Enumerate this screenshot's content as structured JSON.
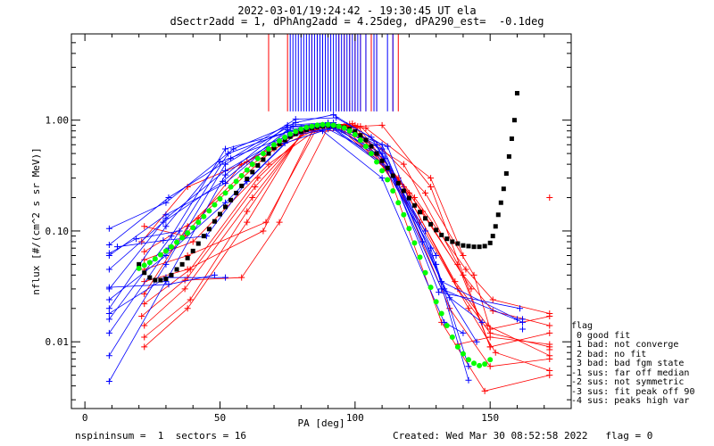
{
  "header": {
    "line1": "2022-03-01/19:24:42 - 19:30:45 UT ela",
    "line2": "dSectr2add = 1, dPhAng2add = 4.25deg, dPA290_est=  -0.1deg"
  },
  "footer": {
    "left": "nspininsum =  1  sectors = 16",
    "right": "Created: Wed Mar 30 08:52:58 2022   flag = 0"
  },
  "legend": {
    "title": "flag",
    "items": [
      " 0 good fit",
      " 1 bad: not converge",
      " 2 bad: no fit",
      " 3 bad: bad fgm state",
      "-1 sus: far off median",
      "-2 sus: not symmetric",
      "-3 sus: fit peak off 90",
      "-4 sus: peaks high var"
    ]
  },
  "colors": {
    "blue": "#0000ff",
    "red": "#ff0000",
    "green": "#00ff00",
    "black": "#000000"
  },
  "chart_data": {
    "type": "line",
    "xlabel": "PA [deg]",
    "ylabel": "nflux [#/(cm^2 s sr MeV)]",
    "xlim": [
      -5,
      180
    ],
    "ylim": [
      0.0025,
      6.0
    ],
    "yscale": "log",
    "xticks": [
      0,
      50,
      100,
      150
    ],
    "xtick_labels": [
      "0",
      "50",
      "100",
      "150"
    ],
    "yticks": [
      0.01,
      0.1,
      1.0
    ],
    "ytick_labels": [
      "0.01",
      "0.10",
      "1.00"
    ],
    "blue_curves": [
      [
        [
          9,
          0.0044
        ],
        [
          30,
          0.035
        ],
        [
          52,
          0.32
        ],
        [
          75,
          0.9
        ],
        [
          90,
          0.95
        ],
        [
          108,
          0.5
        ],
        [
          128,
          0.07
        ],
        [
          142,
          0.0045
        ]
      ],
      [
        [
          9,
          0.0075
        ],
        [
          30,
          0.05
        ],
        [
          52,
          0.4
        ],
        [
          75,
          0.86
        ],
        [
          90,
          0.92
        ],
        [
          110,
          0.55
        ],
        [
          130,
          0.05
        ],
        [
          142,
          0.006
        ]
      ],
      [
        [
          9,
          0.012
        ],
        [
          31,
          0.07
        ],
        [
          53,
          0.5
        ],
        [
          76,
          0.8
        ],
        [
          92,
          0.9
        ],
        [
          112,
          0.58
        ],
        [
          133,
          0.03
        ],
        [
          145,
          0.01
        ]
      ],
      [
        [
          9,
          0.016
        ],
        [
          32,
          0.09
        ],
        [
          52,
          0.55
        ],
        [
          75,
          0.78
        ],
        [
          91,
          0.88
        ],
        [
          110,
          0.5
        ],
        [
          135,
          0.025
        ],
        [
          147,
          0.015
        ]
      ],
      [
        [
          9,
          0.02
        ],
        [
          30,
          0.11
        ],
        [
          50,
          0.42
        ],
        [
          74,
          0.7
        ],
        [
          90,
          0.83
        ],
        [
          111,
          0.45
        ],
        [
          132,
          0.035
        ],
        [
          160,
          0.016
        ]
      ],
      [
        [
          9,
          0.03
        ],
        [
          30,
          0.13
        ],
        [
          52,
          0.35
        ],
        [
          76,
          0.75
        ],
        [
          92,
          0.85
        ],
        [
          112,
          0.38
        ],
        [
          132,
          0.03
        ],
        [
          162,
          0.015
        ]
      ],
      [
        [
          9,
          0.045
        ],
        [
          29,
          0.12
        ],
        [
          51,
          0.28
        ],
        [
          75,
          0.82
        ],
        [
          90,
          0.9
        ],
        [
          113,
          0.35
        ],
        [
          131,
          0.028
        ],
        [
          161,
          0.02
        ]
      ],
      [
        [
          9,
          0.06
        ],
        [
          30,
          0.14
        ],
        [
          52,
          0.27
        ],
        [
          77,
          0.88
        ],
        [
          92,
          0.95
        ],
        [
          108,
          0.6
        ],
        [
          130,
          0.06
        ]
      ],
      [
        [
          9,
          0.075
        ],
        [
          31,
          0.2
        ],
        [
          54,
          0.45
        ],
        [
          78,
          1.02
        ],
        [
          93,
          1.05
        ],
        [
          106,
          0.7
        ],
        [
          126,
          0.1
        ]
      ],
      [
        [
          9,
          0.105
        ],
        [
          30,
          0.18
        ],
        [
          55,
          0.55
        ],
        [
          78,
          0.95
        ],
        [
          92,
          1.12
        ],
        [
          110,
          0.6
        ],
        [
          125,
          0.08
        ]
      ],
      [
        [
          9,
          0.024
        ],
        [
          30,
          0.06
        ],
        [
          52,
          0.18
        ],
        [
          74,
          0.62
        ],
        [
          88,
          0.8
        ],
        [
          110,
          0.3
        ],
        [
          133,
          0.015
        ],
        [
          140,
          0.012
        ]
      ],
      [
        [
          9,
          0.018
        ],
        [
          30,
          0.038
        ],
        [
          52,
          0.038
        ]
      ],
      [
        [
          9,
          0.031
        ],
        [
          31,
          0.033
        ],
        [
          48,
          0.04
        ]
      ],
      [
        [
          12,
          0.072
        ],
        [
          29,
          0.082
        ],
        [
          45,
          0.09
        ],
        [
          60,
          0.28
        ],
        [
          80,
          0.85
        ]
      ],
      [
        [
          9,
          0.063
        ],
        [
          19,
          0.085
        ],
        [
          35,
          0.1
        ]
      ]
    ],
    "red_curves": [
      [
        [
          22,
          0.009
        ],
        [
          38,
          0.02
        ],
        [
          60,
          0.12
        ],
        [
          80,
          0.76
        ],
        [
          95,
          0.82
        ],
        [
          112,
          0.35
        ],
        [
          132,
          0.015
        ],
        [
          148,
          0.0036
        ],
        [
          172,
          0.005
        ]
      ],
      [
        [
          22,
          0.011
        ],
        [
          39,
          0.024
        ],
        [
          60,
          0.15
        ],
        [
          81,
          0.8
        ],
        [
          96,
          0.86
        ],
        [
          115,
          0.3
        ],
        [
          135,
          0.02
        ],
        [
          150,
          0.006
        ],
        [
          172,
          0.007
        ]
      ],
      [
        [
          22,
          0.014
        ],
        [
          37,
          0.03
        ],
        [
          62,
          0.2
        ],
        [
          82,
          0.84
        ],
        [
          97,
          0.9
        ],
        [
          118,
          0.25
        ],
        [
          138,
          0.03
        ],
        [
          150,
          0.012
        ],
        [
          172,
          0.009
        ]
      ],
      [
        [
          21,
          0.017
        ],
        [
          38,
          0.038
        ],
        [
          63,
          0.25
        ],
        [
          83,
          0.86
        ],
        [
          98,
          0.92
        ],
        [
          120,
          0.22
        ],
        [
          140,
          0.04
        ],
        [
          151,
          0.019
        ],
        [
          172,
          0.014
        ]
      ],
      [
        [
          22,
          0.022
        ],
        [
          39,
          0.045
        ],
        [
          64,
          0.3
        ],
        [
          84,
          0.88
        ],
        [
          99,
          0.93
        ],
        [
          122,
          0.2
        ],
        [
          141,
          0.045
        ],
        [
          151,
          0.024
        ],
        [
          172,
          0.018
        ]
      ],
      [
        [
          22,
          0.027
        ],
        [
          38,
          0.11
        ],
        [
          62,
          0.4
        ],
        [
          82,
          0.85
        ],
        [
          96,
          0.88
        ],
        [
          118,
          0.4
        ],
        [
          138,
          0.05
        ],
        [
          150,
          0.009
        ],
        [
          172,
          0.012
        ]
      ],
      [
        [
          21,
          0.08
        ],
        [
          38,
          0.25
        ],
        [
          60,
          0.42
        ],
        [
          80,
          0.8
        ],
        [
          95,
          0.85
        ],
        [
          116,
          0.3
        ],
        [
          137,
          0.035
        ],
        [
          149,
          0.014
        ],
        [
          172,
          0.0075
        ]
      ],
      [
        [
          22,
          0.11
        ],
        [
          37,
          0.09
        ],
        [
          58,
          0.4
        ],
        [
          79,
          0.78
        ],
        [
          94,
          0.86
        ],
        [
          110,
          0.9
        ],
        [
          128,
          0.25
        ],
        [
          150,
          0.009
        ]
      ],
      [
        [
          22,
          0.035
        ],
        [
          38,
          0.045
        ],
        [
          66,
          0.1
        ],
        [
          85,
          0.86
        ],
        [
          100,
          0.9
        ],
        [
          124,
          0.12
        ],
        [
          142,
          0.02
        ],
        [
          152,
          0.008
        ],
        [
          172,
          0.0055
        ]
      ],
      [
        [
          22,
          0.045
        ],
        [
          38,
          0.06
        ],
        [
          67,
          0.12
        ],
        [
          86,
          0.86
        ],
        [
          101,
          0.88
        ],
        [
          125,
          0.15
        ],
        [
          143,
          0.03
        ]
      ],
      [
        [
          22,
          0.055
        ],
        [
          40,
          0.08
        ],
        [
          68,
          0.4
        ],
        [
          88,
          0.9
        ],
        [
          102,
          0.88
        ],
        [
          126,
          0.22
        ],
        [
          144,
          0.04
        ],
        [
          150,
          0.013
        ],
        [
          172,
          0.017
        ]
      ],
      [
        [
          22,
          0.065
        ],
        [
          42,
          0.13
        ],
        [
          70,
          0.55
        ],
        [
          90,
          0.92
        ],
        [
          104,
          0.85
        ],
        [
          128,
          0.3
        ],
        [
          140,
          0.06
        ]
      ],
      [
        [
          37,
          0.036
        ],
        [
          58,
          0.038
        ],
        [
          72,
          0.12
        ],
        [
          90,
          0.86
        ]
      ],
      [
        [
          138,
          0.0095
        ],
        [
          150,
          0.011
        ],
        [
          172,
          0.0095
        ]
      ]
    ],
    "black_fit": {
      "x": [
        20,
        22,
        24,
        26,
        28,
        30,
        32,
        34,
        36,
        38,
        40,
        42,
        44,
        46,
        48,
        50,
        52,
        54,
        56,
        58,
        60,
        62,
        64,
        66,
        68,
        70,
        72,
        74,
        76,
        78,
        80,
        82,
        84,
        86,
        88,
        90,
        92,
        94,
        96,
        98,
        100,
        102,
        104,
        106,
        108,
        110,
        112,
        114,
        116,
        118,
        120,
        122,
        124,
        126,
        128,
        130,
        132,
        134,
        136,
        138,
        140,
        142,
        144,
        146,
        148,
        150,
        151,
        152,
        153,
        154,
        155,
        156,
        157,
        158,
        159,
        160
      ],
      "y": [
        0.05,
        0.042,
        0.038,
        0.036,
        0.036,
        0.037,
        0.04,
        0.045,
        0.05,
        0.057,
        0.066,
        0.077,
        0.09,
        0.104,
        0.122,
        0.142,
        0.165,
        0.19,
        0.22,
        0.255,
        0.295,
        0.34,
        0.39,
        0.44,
        0.5,
        0.56,
        0.61,
        0.66,
        0.71,
        0.75,
        0.79,
        0.82,
        0.85,
        0.87,
        0.88,
        0.89,
        0.89,
        0.88,
        0.86,
        0.83,
        0.79,
        0.73,
        0.66,
        0.58,
        0.5,
        0.43,
        0.37,
        0.315,
        0.27,
        0.23,
        0.198,
        0.17,
        0.148,
        0.13,
        0.115,
        0.102,
        0.092,
        0.085,
        0.08,
        0.077,
        0.074,
        0.073,
        0.072,
        0.072,
        0.073,
        0.078,
        0.09,
        0.11,
        0.14,
        0.18,
        0.24,
        0.33,
        0.47,
        0.68,
        1.0,
        1.75
      ]
    },
    "green_fit": {
      "x": [
        20,
        22,
        24,
        26,
        28,
        30,
        32,
        34,
        36,
        38,
        40,
        42,
        44,
        46,
        48,
        50,
        52,
        54,
        56,
        58,
        60,
        62,
        64,
        66,
        68,
        70,
        72,
        74,
        76,
        78,
        80,
        82,
        84,
        86,
        88,
        90,
        92,
        94,
        96,
        98,
        100,
        102,
        104,
        106,
        108,
        110,
        112,
        114,
        116,
        118,
        120,
        122,
        124,
        126,
        128,
        130,
        132,
        134,
        136,
        138,
        140,
        142,
        144,
        146,
        148,
        150
      ],
      "y": [
        0.046,
        0.049,
        0.052,
        0.056,
        0.061,
        0.066,
        0.072,
        0.079,
        0.087,
        0.096,
        0.107,
        0.12,
        0.135,
        0.152,
        0.172,
        0.195,
        0.22,
        0.25,
        0.28,
        0.315,
        0.355,
        0.4,
        0.45,
        0.5,
        0.55,
        0.6,
        0.65,
        0.7,
        0.75,
        0.79,
        0.83,
        0.86,
        0.88,
        0.9,
        0.91,
        0.91,
        0.9,
        0.88,
        0.85,
        0.8,
        0.74,
        0.66,
        0.58,
        0.5,
        0.42,
        0.35,
        0.29,
        0.23,
        0.18,
        0.14,
        0.105,
        0.078,
        0.058,
        0.042,
        0.031,
        0.023,
        0.018,
        0.014,
        0.011,
        0.009,
        0.0078,
        0.0069,
        0.0064,
        0.0061,
        0.0063,
        0.0069
      ]
    },
    "blue_markers_top": [
      76,
      77,
      78,
      79,
      80,
      81,
      82,
      83,
      84,
      85,
      86,
      87,
      88,
      89,
      90,
      91,
      92,
      93,
      94,
      95,
      96,
      97,
      98,
      99,
      100,
      101,
      102,
      104,
      107,
      108,
      112,
      114
    ],
    "red_markers_top": [
      68,
      75,
      84,
      86,
      88,
      94,
      96,
      98,
      100,
      102,
      104,
      106,
      108,
      114,
      116
    ],
    "stray_points": [
      {
        "x": 172,
        "y": 0.2,
        "color": "red"
      },
      {
        "x": 162,
        "y": 0.013,
        "color": "blue"
      },
      {
        "x": 162,
        "y": 0.016,
        "color": "blue"
      },
      {
        "x": 172,
        "y": 0.0085,
        "color": "red"
      }
    ]
  }
}
